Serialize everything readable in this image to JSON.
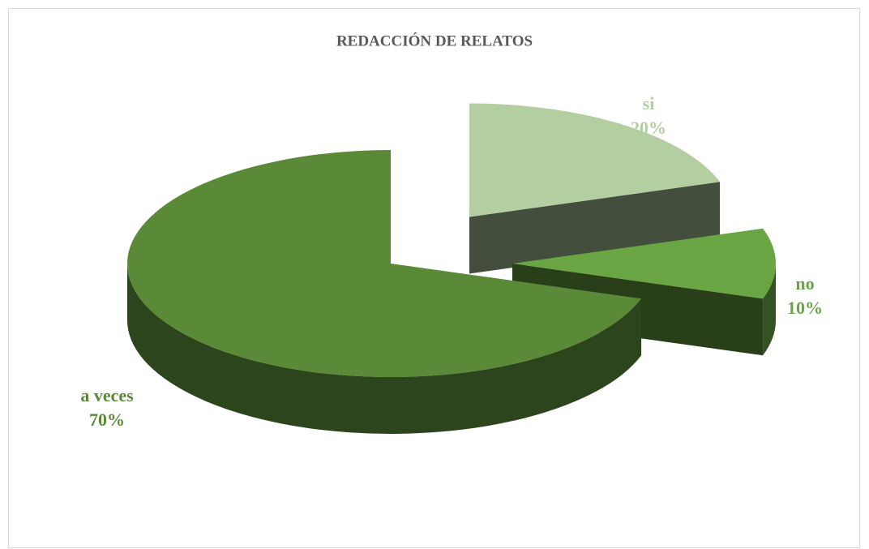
{
  "chart_data": {
    "type": "pie",
    "title": "REDACCIÓN DE RELATOS",
    "categories": [
      "si",
      "no",
      "a veces"
    ],
    "values": [
      20,
      10,
      70
    ],
    "value_labels": [
      "20%",
      "10%",
      "70%"
    ],
    "colors": [
      "#b3cea1",
      "#6aa543",
      "#5a8a37"
    ]
  }
}
